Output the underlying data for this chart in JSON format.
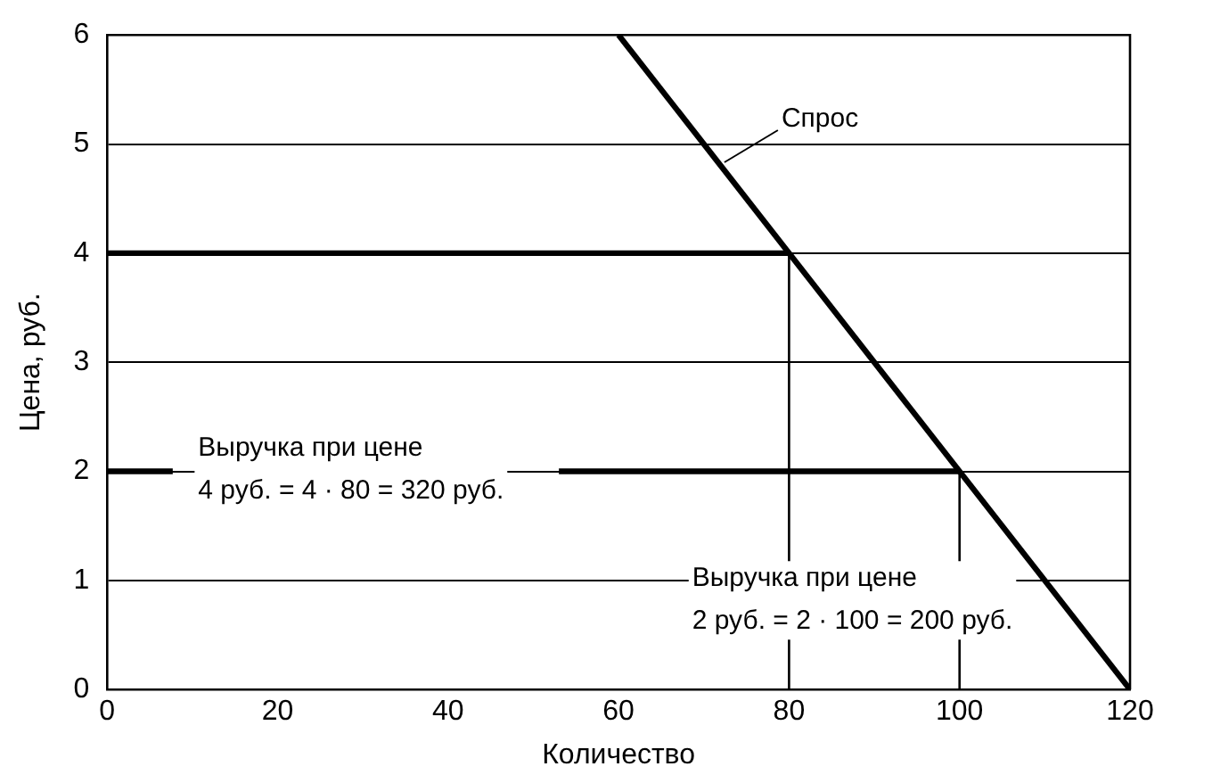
{
  "chart_data": {
    "type": "line",
    "xlabel": "Количество",
    "ylabel": "Цена, руб.",
    "xlim": [
      0,
      120
    ],
    "xticks": [
      0,
      20,
      40,
      60,
      80,
      100,
      120
    ],
    "ylim": [
      0,
      6
    ],
    "yticks": [
      0,
      1,
      2,
      3,
      4,
      5,
      6
    ],
    "grid": "y",
    "legend": false,
    "marker": "none",
    "line_style": "solid",
    "series": [
      {
        "name": "Спрос",
        "color": "#000000",
        "x": [
          60,
          120
        ],
        "values": [
          6,
          0
        ]
      },
      {
        "color": "#000000",
        "x": [
          0,
          80
        ],
        "values": [
          4,
          4
        ]
      },
      {
        "color": "#000000",
        "x": [
          0,
          7.7,
          30,
          53,
          100
        ],
        "values": [
          2,
          2,
          null,
          2,
          2
        ]
      },
      {
        "color": "#000000",
        "x": [
          80,
          80
        ],
        "values": [
          0,
          4
        ]
      },
      {
        "color": "#000000",
        "x": [
          100,
          100
        ],
        "values": [
          0,
          2
        ]
      }
    ],
    "annotations": [
      "Выручка при цене\n4 руб. = 4 · 80 = 320 руб.",
      "Выручка при цене\n2 руб. = 2 · 100 = 200 руб."
    ]
  }
}
